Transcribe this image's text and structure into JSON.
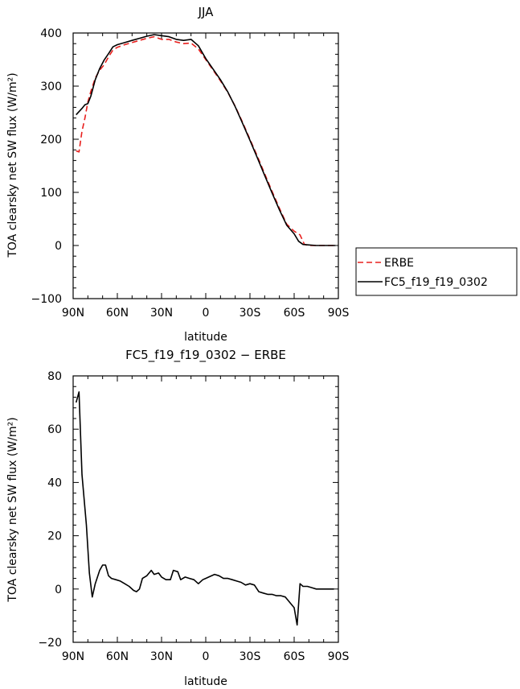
{
  "chart_data": [
    {
      "type": "line",
      "title": "JJA",
      "xlabel": "latitude",
      "ylabel": "TOA clearsky net SW flux (W/m²)",
      "xlim": [
        90,
        -90
      ],
      "ylim": [
        -100,
        400
      ],
      "x_ticks": [
        90,
        60,
        30,
        0,
        -30,
        -60,
        -90
      ],
      "x_tick_labels": [
        "90N",
        "60N",
        "30N",
        "0",
        "30S",
        "60S",
        "90S"
      ],
      "y_ticks": [
        -100,
        0,
        100,
        200,
        300,
        400
      ],
      "y_tick_labels": [
        "−100",
        "0",
        "100",
        "200",
        "300",
        "400"
      ],
      "legend_position": "right",
      "series": [
        {
          "name": "ERBE",
          "color": "#e8201e",
          "dash": "dashed",
          "points": [
            [
              88,
              178
            ],
            [
              86,
              176
            ],
            [
              84,
              215
            ],
            [
              82,
              240
            ],
            [
              80,
              270
            ],
            [
              78,
              290
            ],
            [
              75,
              315
            ],
            [
              72,
              330
            ],
            [
              69,
              340
            ],
            [
              66,
              355
            ],
            [
              63,
              368
            ],
            [
              60,
              373
            ],
            [
              55,
              378
            ],
            [
              50,
              382
            ],
            [
              45,
              386
            ],
            [
              40,
              390
            ],
            [
              35,
              393
            ],
            [
              30,
              388
            ],
            [
              25,
              388
            ],
            [
              20,
              383
            ],
            [
              15,
              380
            ],
            [
              10,
              381
            ],
            [
              5,
              370
            ],
            [
              0,
              350
            ],
            [
              -5,
              330
            ],
            [
              -10,
              310
            ],
            [
              -15,
              288
            ],
            [
              -20,
              262
            ],
            [
              -25,
              232
            ],
            [
              -30,
              200
            ],
            [
              -35,
              168
            ],
            [
              -40,
              135
            ],
            [
              -45,
              102
            ],
            [
              -50,
              70
            ],
            [
              -55,
              40
            ],
            [
              -60,
              27
            ],
            [
              -64,
              20
            ],
            [
              -67,
              2
            ],
            [
              -70,
              0
            ],
            [
              -75,
              0
            ],
            [
              -80,
              0
            ],
            [
              -85,
              0
            ],
            [
              -88,
              0
            ]
          ]
        },
        {
          "name": "FC5_f19_f19_0302",
          "color": "#000000",
          "dash": "solid",
          "points": [
            [
              88,
              246
            ],
            [
              86,
              252
            ],
            [
              84,
              258
            ],
            [
              82,
              265
            ],
            [
              80,
              267
            ],
            [
              78,
              281
            ],
            [
              75,
              312
            ],
            [
              72,
              333
            ],
            [
              69,
              349
            ],
            [
              66,
              361
            ],
            [
              63,
              374
            ],
            [
              60,
              378
            ],
            [
              55,
              382
            ],
            [
              50,
              386
            ],
            [
              45,
              390
            ],
            [
              40,
              394
            ],
            [
              35,
              397
            ],
            [
              30,
              395
            ],
            [
              25,
              393
            ],
            [
              20,
              388
            ],
            [
              15,
              386
            ],
            [
              10,
              388
            ],
            [
              5,
              376
            ],
            [
              0,
              352
            ],
            [
              -5,
              332
            ],
            [
              -10,
              312
            ],
            [
              -15,
              289
            ],
            [
              -20,
              261
            ],
            [
              -25,
              230
            ],
            [
              -30,
              198
            ],
            [
              -35,
              165
            ],
            [
              -40,
              132
            ],
            [
              -45,
              99
            ],
            [
              -50,
              67
            ],
            [
              -55,
              38
            ],
            [
              -60,
              22
            ],
            [
              -63,
              8
            ],
            [
              -66,
              2
            ],
            [
              -70,
              1
            ],
            [
              -75,
              0
            ],
            [
              -80,
              0
            ],
            [
              -85,
              0
            ],
            [
              -88,
              0
            ]
          ]
        }
      ]
    },
    {
      "type": "line",
      "title": "FC5_f19_f19_0302 − ERBE",
      "xlabel": "latitude",
      "ylabel": "TOA clearsky net SW flux (W/m²)",
      "xlim": [
        90,
        -90
      ],
      "ylim": [
        -20,
        80
      ],
      "x_ticks": [
        90,
        60,
        30,
        0,
        -30,
        -60,
        -90
      ],
      "x_tick_labels": [
        "90N",
        "60N",
        "30N",
        "0",
        "30S",
        "60S",
        "90S"
      ],
      "y_ticks": [
        -20,
        0,
        20,
        40,
        60,
        80
      ],
      "y_tick_labels": [
        "−20",
        "0",
        "20",
        "40",
        "60",
        "80"
      ],
      "series": [
        {
          "color": "#000000",
          "dash": "solid",
          "points": [
            [
              88,
              70
            ],
            [
              86,
              74
            ],
            [
              84,
              43
            ],
            [
              81,
              24
            ],
            [
              79,
              6
            ],
            [
              77,
              -3
            ],
            [
              75,
              2
            ],
            [
              72,
              7
            ],
            [
              70,
              9
            ],
            [
              68,
              9
            ],
            [
              66,
              5
            ],
            [
              64,
              4
            ],
            [
              61,
              3.5
            ],
            [
              58,
              3
            ],
            [
              55,
              2
            ],
            [
              52,
              1
            ],
            [
              49,
              -0.5
            ],
            [
              47,
              -1
            ],
            [
              45,
              0
            ],
            [
              43,
              4
            ],
            [
              40,
              5
            ],
            [
              37,
              7
            ],
            [
              35,
              5.5
            ],
            [
              32,
              6
            ],
            [
              30,
              4.5
            ],
            [
              27,
              3.5
            ],
            [
              24,
              3.5
            ],
            [
              22,
              7
            ],
            [
              19,
              6.5
            ],
            [
              17,
              3.5
            ],
            [
              14,
              4.5
            ],
            [
              11,
              4
            ],
            [
              8,
              3.5
            ],
            [
              5,
              2
            ],
            [
              2,
              3.5
            ],
            [
              -2,
              4.5
            ],
            [
              -6,
              5.5
            ],
            [
              -9,
              5
            ],
            [
              -12,
              4
            ],
            [
              -15,
              4
            ],
            [
              -18,
              3.5
            ],
            [
              -21,
              3
            ],
            [
              -24,
              2.5
            ],
            [
              -27,
              1.5
            ],
            [
              -30,
              2
            ],
            [
              -33,
              1.5
            ],
            [
              -36,
              -1
            ],
            [
              -39,
              -1.5
            ],
            [
              -42,
              -2
            ],
            [
              -45,
              -2
            ],
            [
              -48,
              -2.5
            ],
            [
              -51,
              -2.5
            ],
            [
              -54,
              -3
            ],
            [
              -57,
              -5
            ],
            [
              -60,
              -7
            ],
            [
              -62,
              -13.5
            ],
            [
              -64,
              2
            ],
            [
              -66,
              1
            ],
            [
              -69,
              1
            ],
            [
              -72,
              0.5
            ],
            [
              -75,
              0
            ],
            [
              -78,
              0
            ],
            [
              -81,
              0
            ],
            [
              -84,
              0
            ],
            [
              -87,
              0
            ]
          ]
        }
      ]
    }
  ]
}
